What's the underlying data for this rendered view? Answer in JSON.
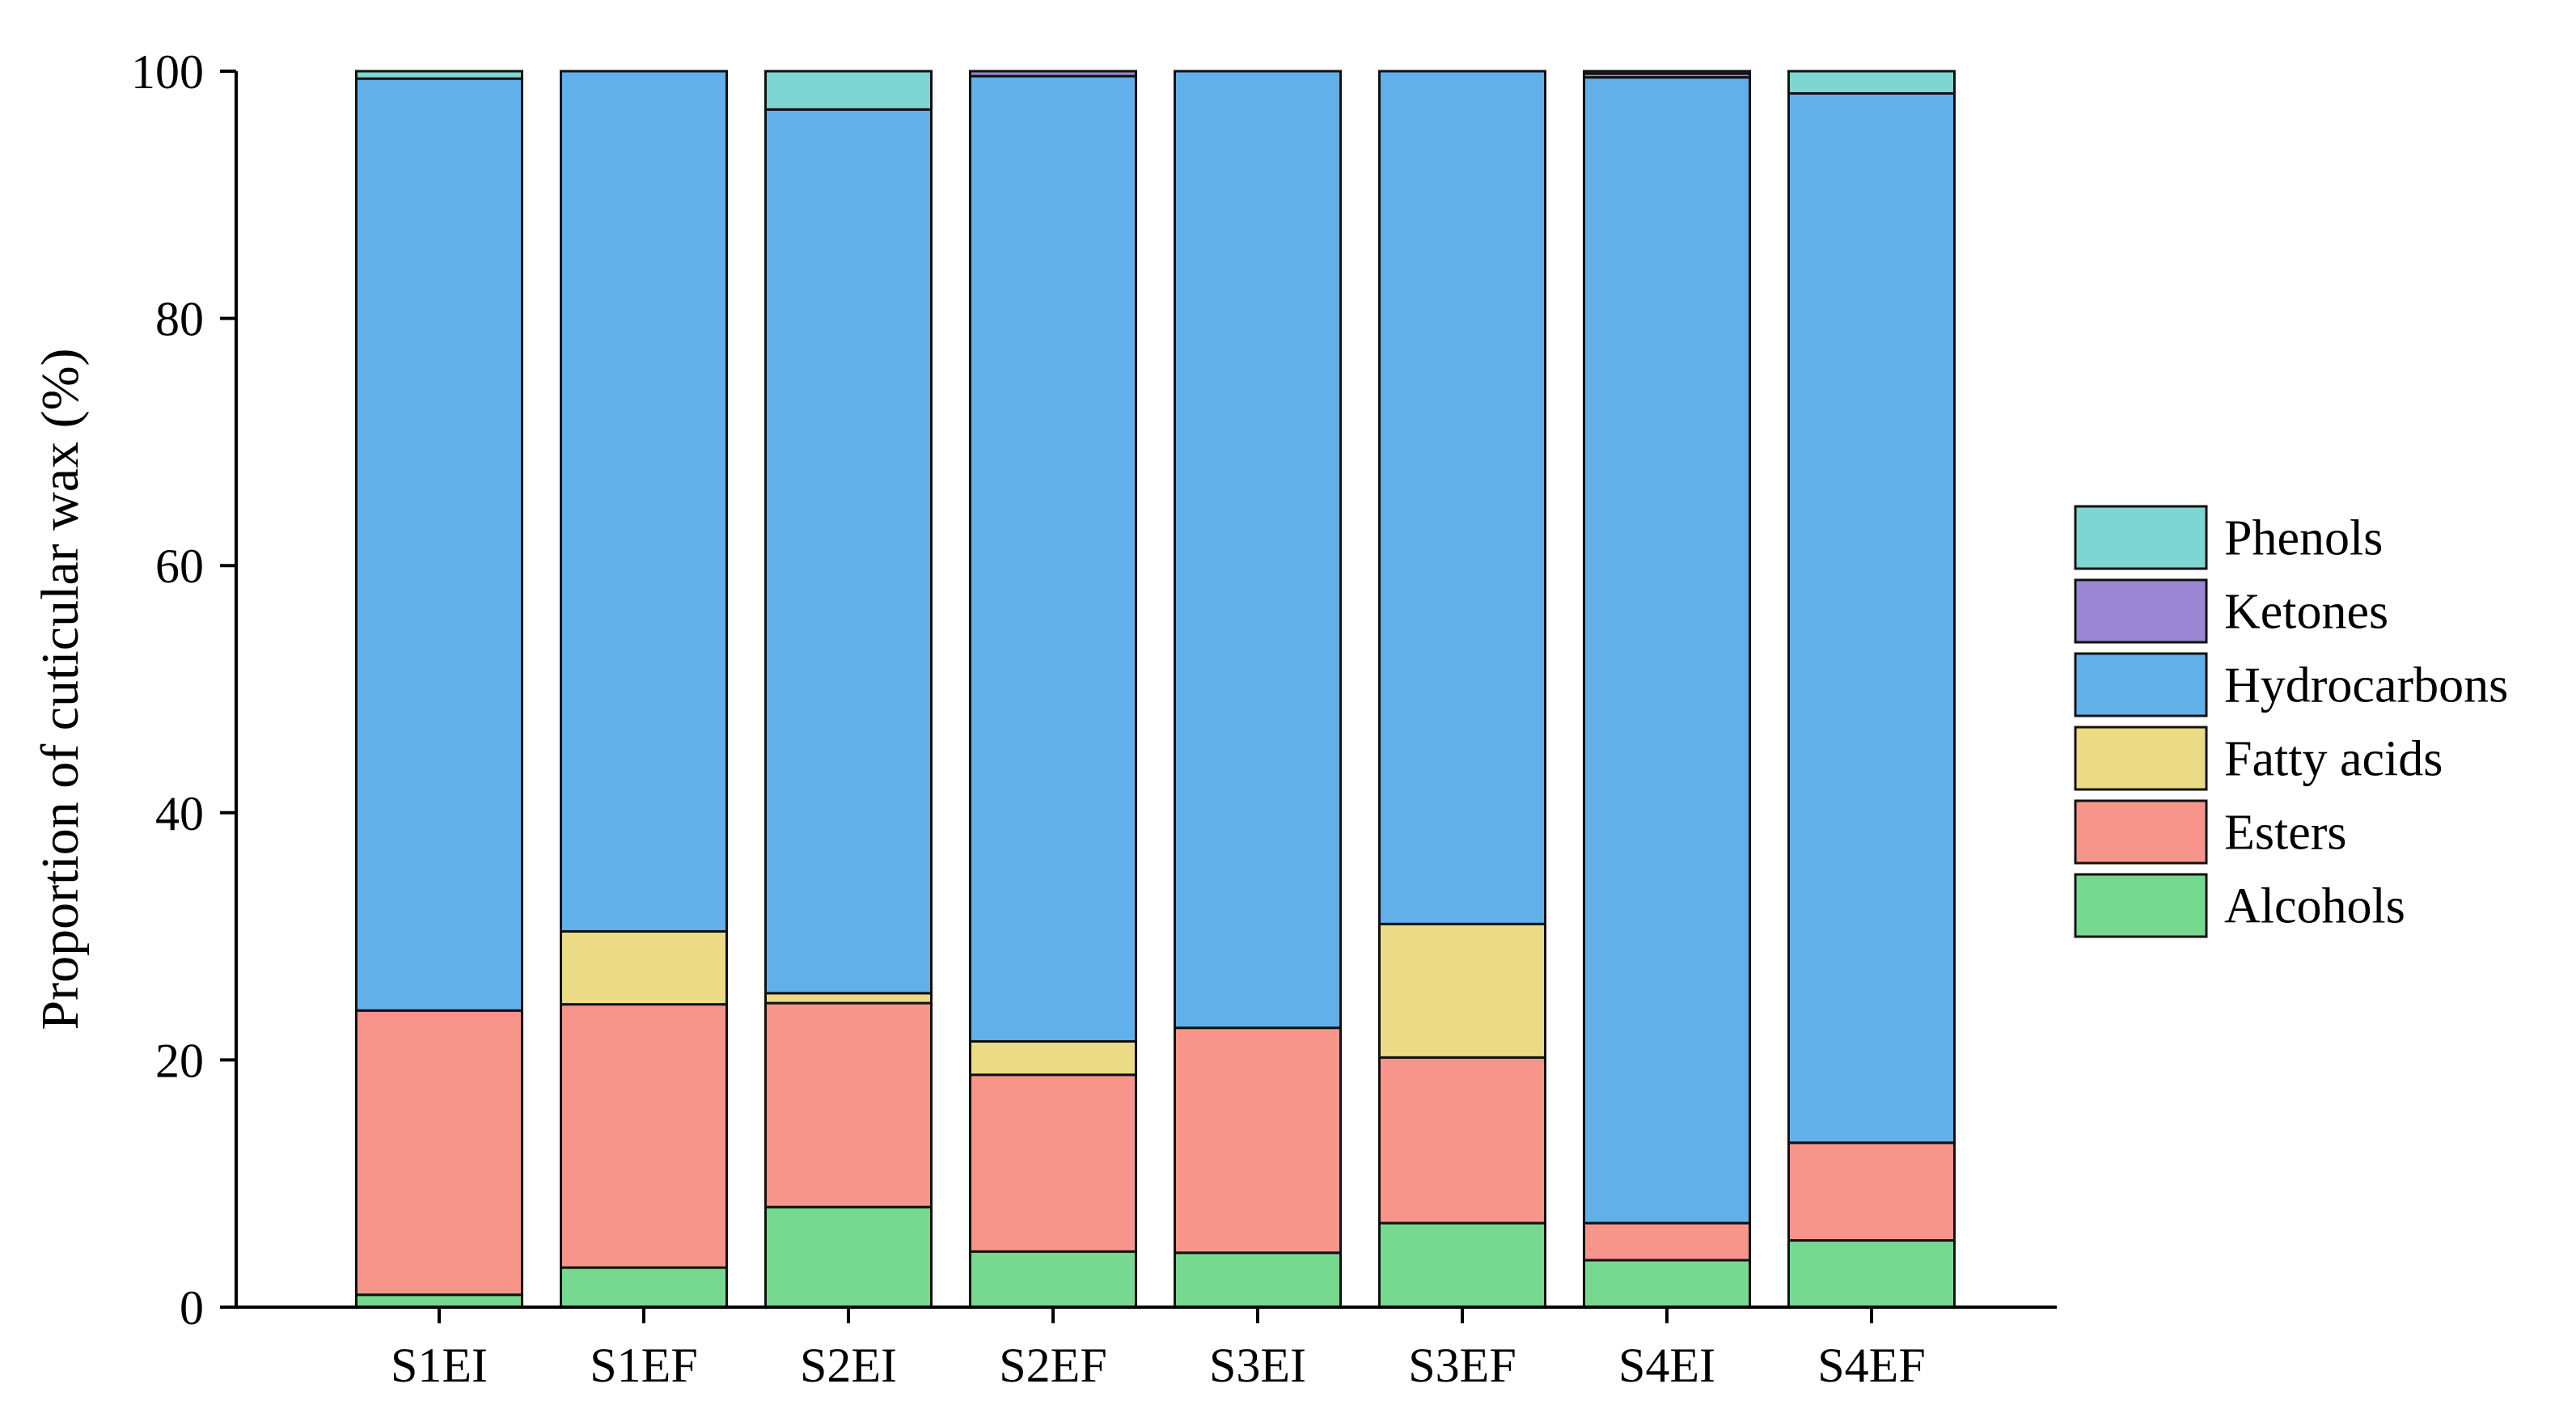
{
  "chart_data": {
    "type": "bar",
    "stacked": true,
    "title": "",
    "xlabel": "",
    "ylabel": "Proportion of cuticular wax (%)",
    "ylim": [
      0,
      100
    ],
    "yticks": [
      "0",
      "20",
      "40",
      "60",
      "80",
      "100"
    ],
    "categories": [
      "S1EI",
      "S1EF",
      "S2EI",
      "S2EF",
      "S3EI",
      "S3EF",
      "S4EI",
      "S4EF"
    ],
    "series": [
      {
        "name": "Alcohols",
        "color": "#77d98f",
        "values": [
          1.0,
          3.2,
          8.1,
          4.5,
          4.4,
          6.8,
          3.8,
          5.4
        ]
      },
      {
        "name": "Esters",
        "color": "#f7958a",
        "values": [
          23.0,
          21.3,
          16.5,
          14.3,
          18.2,
          13.4,
          3.0,
          7.9
        ]
      },
      {
        "name": "Fatty acids",
        "color": "#ecdb86",
        "values": [
          0.0,
          5.9,
          0.8,
          2.7,
          0.0,
          10.8,
          0.0,
          0.0
        ]
      },
      {
        "name": "Hydrocarbons",
        "color": "#62b0ea",
        "values": [
          75.4,
          69.6,
          71.5,
          78.1,
          77.4,
          69.0,
          92.7,
          84.9
        ]
      },
      {
        "name": "Ketones",
        "color": "#9b86d4",
        "values": [
          0.0,
          0.0,
          0.0,
          0.4,
          0.0,
          0.0,
          0.3,
          0.0
        ]
      },
      {
        "name": "Phenols",
        "color": "#7dd6d2",
        "values": [
          0.6,
          0.0,
          3.1,
          0.0,
          0.0,
          0.0,
          0.2,
          1.8
        ]
      }
    ],
    "legend": {
      "position": "right",
      "order": [
        "Phenols",
        "Ketones",
        "Hydrocarbons",
        "Fatty acids",
        "Esters",
        "Alcohols"
      ]
    },
    "grid": false
  }
}
